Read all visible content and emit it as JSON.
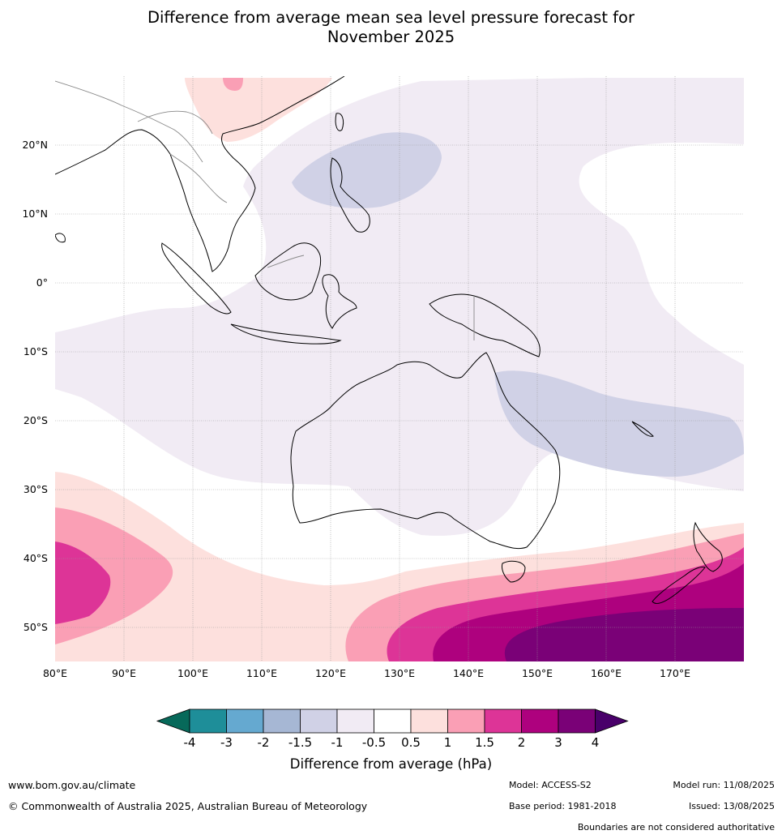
{
  "title_line1": "Difference from average mean sea level pressure forecast for",
  "title_line2": "November 2025",
  "lat_labels": [
    "20°N",
    "10°N",
    "0°",
    "10°S",
    "20°S",
    "30°S",
    "40°S",
    "50°S"
  ],
  "lon_labels": [
    "80°E",
    "90°E",
    "100°E",
    "110°E",
    "120°E",
    "130°E",
    "140°E",
    "150°E",
    "160°E",
    "170°E"
  ],
  "colorbar": {
    "title": "Difference from average (hPa)",
    "ticks": [
      "-4",
      "-3",
      "-2",
      "-1.5",
      "-1",
      "-0.5",
      "0.5",
      "1",
      "1.5",
      "2",
      "3",
      "4"
    ],
    "colors": [
      "#07695a",
      "#1e8e99",
      "#65a9d0",
      "#a6b7d4",
      "#d0d1e6",
      "#f1ebf4",
      "#ffffff",
      "#fde0dd",
      "#fa9fb5",
      "#dd3497",
      "#ae017e",
      "#7a0177",
      "#49006a"
    ]
  },
  "footer": {
    "url": "www.bom.gov.au/climate",
    "copyright": "© Commonwealth of Australia 2025, Australian Bureau of Meteorology",
    "model": "Model: ACCESS-S2",
    "base_period": "Base period: 1981-2018",
    "model_run": "Model run: 11/08/2025",
    "issued": "Issued: 13/08/2025",
    "disclaimer": "Boundaries are not considered authoritative"
  }
}
